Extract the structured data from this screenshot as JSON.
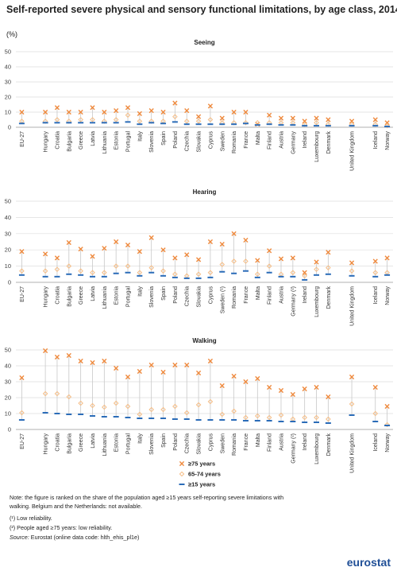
{
  "title": "Self-reported severe physical and sensory functional limitations, by age class, 2014",
  "subtitle": "(%)",
  "note": "Note: the figure is ranked on the share of the population aged ≥15 years self-reporting severe limitations with walking. Belgium and the Netherlands: not available.",
  "footnotes": [
    "(¹) Low reliability.",
    "(²) People aged ≥75 years: low reliability."
  ],
  "source_label": "Source:",
  "source": "Eurostat (online data code: hlth_ehis_pl1e)",
  "logo": "eurostat",
  "chart_data": [
    {
      "type": "dot",
      "title": "Seeing",
      "categories": [
        "EU-27",
        null,
        "Hungary",
        "Croatia",
        "Bulgaria",
        "Greece",
        "Latvia",
        "Lithuania",
        "Estonia",
        "Portugal",
        "Italy",
        "Slovenia",
        "Spain",
        "Poland",
        "Czechia",
        "Slovakia",
        "Cyprus",
        "Sweden",
        "Romania",
        "France",
        "Malta",
        "Finland",
        "Austria",
        "Germany",
        "Ireland",
        "Luxembourg",
        "Denmark",
        null,
        "United Kingdom",
        null,
        "Iceland",
        "Norway"
      ],
      "series": [
        {
          "name": "≥75 years",
          "color": "#ef8a3e",
          "marker": "cross",
          "values": [
            10,
            null,
            10,
            13,
            10,
            10,
            13,
            10,
            11,
            13,
            9,
            11,
            10,
            16,
            11,
            7,
            14,
            6,
            10,
            10,
            2,
            8,
            6,
            6,
            4,
            6,
            5,
            null,
            4,
            null,
            5,
            3
          ]
        },
        {
          "name": "65-74 years",
          "color": "#f5bd86",
          "marker": "diamond",
          "values": [
            4,
            null,
            4,
            5,
            4,
            5,
            5,
            4,
            5,
            8,
            4,
            4,
            4,
            7,
            4,
            4,
            5,
            3,
            3,
            3,
            3,
            3,
            3,
            3,
            2,
            3,
            2,
            null,
            2,
            null,
            2,
            1
          ]
        },
        {
          "name": "≥15 years",
          "color": "#2b6cb8",
          "marker": "dash",
          "values": [
            2.5,
            null,
            3,
            3,
            3,
            3,
            3,
            3,
            3,
            3.5,
            2,
            3,
            2.5,
            3.5,
            2,
            2,
            2,
            2,
            2,
            2.5,
            1.5,
            2,
            1.5,
            1.5,
            1,
            1,
            1,
            null,
            1,
            null,
            1,
            0.5
          ]
        }
      ],
      "ylim": [
        0,
        50
      ],
      "yticks": [
        0,
        10,
        20,
        30,
        40,
        50
      ],
      "grid": true
    },
    {
      "type": "dot",
      "title": "Hearing",
      "categories": [
        "EU-27",
        null,
        "Hungary",
        "Croatia",
        "Bulgaria",
        "Greece",
        "Latvia",
        "Lithuania",
        "Estonia",
        "Portugal",
        "Italy",
        "Slovenia",
        "Spain",
        "Poland",
        "Czechia",
        "Slovakia",
        "Cyprus",
        "Sweden (¹)",
        "Romania",
        "France",
        "Malta",
        "Finland",
        "Austria",
        "Germany (²)",
        "Ireland",
        "Luxembourg",
        "Denmark",
        null,
        "United Kingdom",
        null,
        "Iceland",
        "Norway"
      ],
      "series": [
        {
          "name": "≥75 years",
          "color": "#ef8a3e",
          "marker": "cross",
          "values": [
            19,
            null,
            17.5,
            15,
            24.5,
            20.5,
            16,
            21,
            25,
            23,
            19,
            27.5,
            20,
            15,
            17,
            14,
            25,
            23.5,
            30,
            26,
            13.5,
            19.5,
            14.5,
            15,
            6,
            12.5,
            18.5,
            null,
            12,
            null,
            13,
            15
          ]
        },
        {
          "name": "65-74 years",
          "color": "#f5bd86",
          "marker": "diamond",
          "values": [
            7,
            null,
            7,
            8,
            10,
            7,
            6,
            6,
            10,
            10,
            6,
            9,
            7,
            5,
            4,
            5,
            6,
            11,
            13,
            13,
            5,
            10,
            5,
            6,
            4,
            8,
            9,
            null,
            7,
            null,
            6,
            6
          ]
        },
        {
          "name": "≥15 years",
          "color": "#2b6cb8",
          "marker": "dash",
          "values": [
            4.5,
            null,
            3.5,
            3.5,
            5,
            4.5,
            3.5,
            3.5,
            5.5,
            6,
            4,
            6,
            4,
            3,
            2.5,
            2.5,
            3,
            6.5,
            5.5,
            7,
            3,
            6,
            3.5,
            3.5,
            1.5,
            4.5,
            5,
            null,
            4,
            null,
            3.5,
            4.5
          ]
        }
      ],
      "ylim": [
        0,
        50
      ],
      "yticks": [
        0,
        10,
        20,
        30,
        40,
        50
      ],
      "grid": true
    },
    {
      "type": "dot",
      "title": "Walking",
      "categories": [
        "EU-27",
        null,
        "Hungary",
        "Croatia",
        "Bulgaria",
        "Greece",
        "Latvia",
        "Lithuania",
        "Estonia",
        "Portugal",
        "Italy",
        "Slovenia",
        "Spain",
        "Poland",
        "Czechia",
        "Slovakia",
        "Cyprus",
        "Sweden",
        "Romania",
        "France",
        "Malta",
        "Finland",
        "Austria",
        "Germany (²)",
        "Ireland",
        "Luxembourg",
        "Denmark",
        null,
        "United Kingdom",
        null,
        "Iceland",
        "Norway"
      ],
      "series": [
        {
          "name": "≥75 years",
          "color": "#ef8a3e",
          "marker": "cross",
          "values": [
            32.5,
            null,
            49.5,
            45.5,
            46.5,
            43,
            42,
            43,
            38.5,
            33,
            36.5,
            40.5,
            36,
            40.5,
            40.5,
            35.5,
            43,
            27.5,
            33.5,
            30,
            32,
            26.5,
            24.5,
            22,
            25.5,
            26.5,
            20.5,
            null,
            33,
            null,
            26.5,
            14.5
          ]
        },
        {
          "name": "65-74 years",
          "color": "#f5bd86",
          "marker": "diamond",
          "values": [
            10.5,
            null,
            22.5,
            22.5,
            20.5,
            16.5,
            15,
            14,
            16.5,
            14.5,
            9.5,
            12.5,
            12.5,
            14.5,
            10.5,
            15.5,
            17.5,
            9.5,
            11.5,
            7.5,
            8.5,
            7.5,
            9,
            6.5,
            7.5,
            7.5,
            6.5,
            null,
            16,
            null,
            10,
            3
          ]
        },
        {
          "name": "≥15 years",
          "color": "#2b6cb8",
          "marker": "dash",
          "values": [
            6,
            null,
            10.5,
            10,
            9.5,
            9.5,
            8.5,
            8,
            8,
            7.5,
            7,
            7,
            7,
            6.5,
            6.5,
            6,
            6,
            6,
            6,
            5.5,
            5.5,
            5.5,
            5,
            5,
            4.5,
            4.5,
            4,
            null,
            9,
            null,
            5,
            2.5
          ]
        }
      ],
      "ylim": [
        0,
        50
      ],
      "yticks": [
        0,
        10,
        20,
        30,
        40,
        50
      ],
      "grid": true
    }
  ]
}
